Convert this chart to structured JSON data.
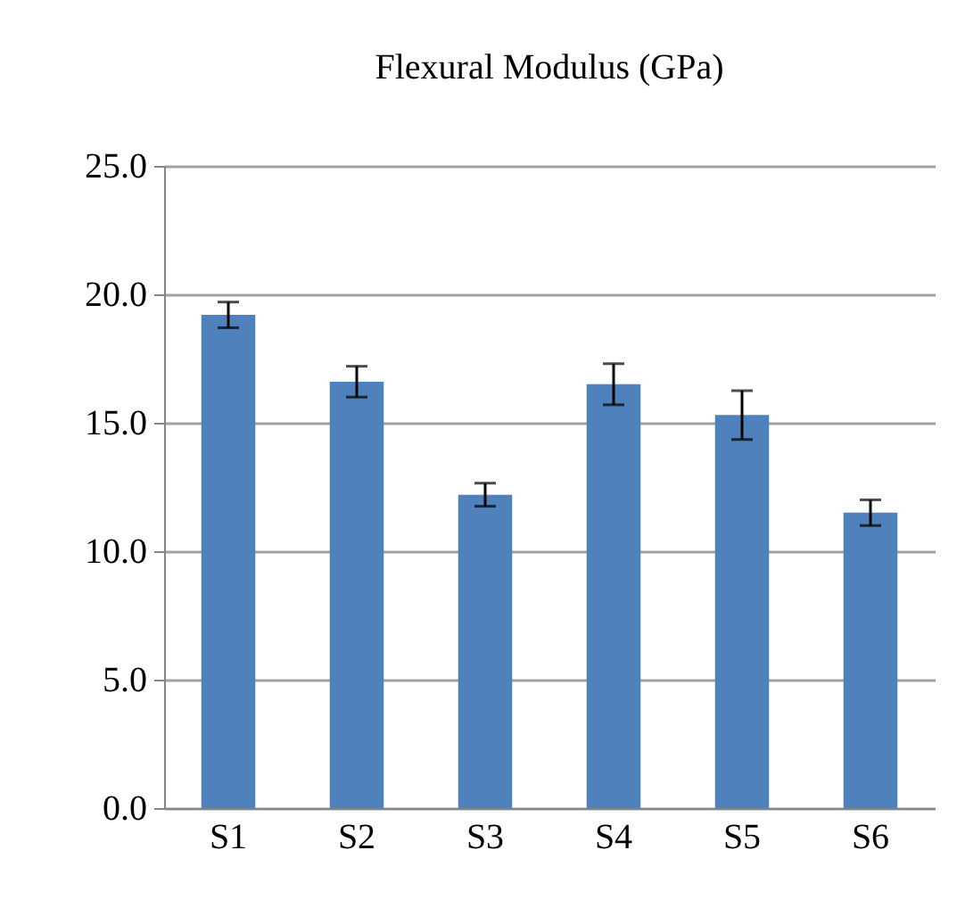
{
  "chart_data": {
    "type": "bar",
    "title": "Flexural Modulus (GPa)",
    "categories": [
      "S1",
      "S2",
      "S3",
      "S4",
      "S5",
      "S6"
    ],
    "values": [
      19.2,
      16.6,
      12.2,
      16.5,
      15.3,
      11.5
    ],
    "errors": [
      0.5,
      0.6,
      0.45,
      0.8,
      0.95,
      0.5
    ],
    "color": "#4f81bd",
    "ylim": [
      0,
      25
    ],
    "yticks": [
      {
        "value": 0,
        "label": "0.0"
      },
      {
        "value": 5,
        "label": "5.0"
      },
      {
        "value": 10,
        "label": "10.0"
      },
      {
        "value": 15,
        "label": "15.0"
      },
      {
        "value": 20,
        "label": "20.0"
      },
      {
        "value": 25,
        "label": "25.0"
      }
    ],
    "grid": "y"
  }
}
